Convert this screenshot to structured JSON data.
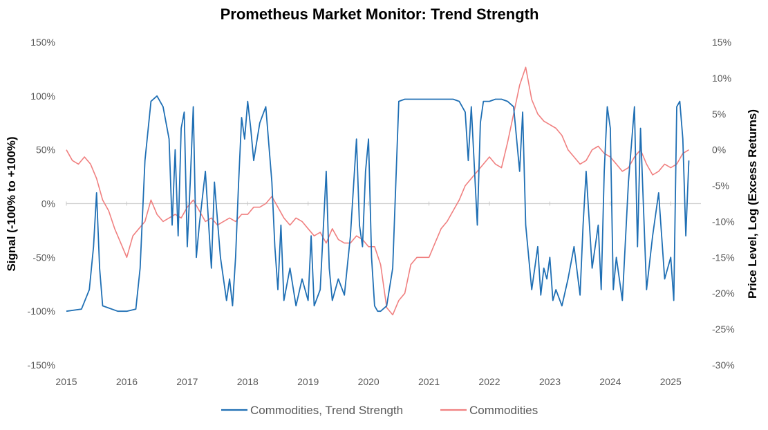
{
  "chart_data": {
    "type": "line",
    "title": "Prometheus Market Monitor: Trend Strength",
    "ylabel_left": "Signal (-100% to +100%)",
    "ylabel_right": "Price Level, Log (Excess Returns)",
    "xlabel": "",
    "x_ticks": [
      "2015",
      "2016",
      "2017",
      "2018",
      "2019",
      "2020",
      "2021",
      "2022",
      "2023",
      "2024",
      "2025"
    ],
    "x_range": [
      2015.0,
      2025.5
    ],
    "y_left": {
      "ticks": [
        "150%",
        "100%",
        "50%",
        "0%",
        "-50%",
        "-100%",
        "-150%"
      ],
      "range": [
        -150,
        150
      ]
    },
    "y_right": {
      "ticks": [
        "15%",
        "10%",
        "5%",
        "0%",
        "-5%",
        "-10%",
        "-15%",
        "-20%",
        "-25%",
        "-30%"
      ],
      "range": [
        -30,
        15
      ]
    },
    "grid": "zero line only",
    "legend_position": "bottom",
    "series": [
      {
        "name": "Commodities, Trend Strength",
        "axis": "left",
        "color": "#1f6fb4",
        "x": [
          2015.0,
          2015.25,
          2015.38,
          2015.45,
          2015.5,
          2015.55,
          2015.6,
          2015.7,
          2015.85,
          2016.0,
          2016.15,
          2016.22,
          2016.3,
          2016.4,
          2016.5,
          2016.6,
          2016.7,
          2016.75,
          2016.8,
          2016.85,
          2016.9,
          2016.95,
          2017.0,
          2017.05,
          2017.1,
          2017.15,
          2017.2,
          2017.3,
          2017.4,
          2017.45,
          2017.55,
          2017.65,
          2017.7,
          2017.75,
          2017.8,
          2017.85,
          2017.9,
          2017.95,
          2018.0,
          2018.05,
          2018.1,
          2018.2,
          2018.3,
          2018.4,
          2018.45,
          2018.5,
          2018.55,
          2018.6,
          2018.7,
          2018.8,
          2018.9,
          2019.0,
          2019.05,
          2019.1,
          2019.2,
          2019.3,
          2019.35,
          2019.4,
          2019.5,
          2019.6,
          2019.7,
          2019.8,
          2019.85,
          2019.9,
          2019.95,
          2020.0,
          2020.05,
          2020.1,
          2020.15,
          2020.2,
          2020.3,
          2020.4,
          2020.5,
          2020.6,
          2020.7,
          2020.8,
          2021.0,
          2021.2,
          2021.4,
          2021.5,
          2021.6,
          2021.65,
          2021.7,
          2021.8,
          2021.85,
          2021.9,
          2022.0,
          2022.1,
          2022.2,
          2022.3,
          2022.4,
          2022.5,
          2022.55,
          2022.6,
          2022.7,
          2022.75,
          2022.8,
          2022.85,
          2022.9,
          2022.95,
          2023.0,
          2023.05,
          2023.1,
          2023.2,
          2023.3,
          2023.4,
          2023.5,
          2023.55,
          2023.6,
          2023.7,
          2023.75,
          2023.8,
          2023.85,
          2023.9,
          2023.95,
          2024.0,
          2024.05,
          2024.1,
          2024.2,
          2024.3,
          2024.4,
          2024.45,
          2024.5,
          2024.6,
          2024.7,
          2024.8,
          2024.9,
          2025.0,
          2025.05,
          2025.1,
          2025.15,
          2025.2,
          2025.25,
          2025.3
        ],
        "y": [
          -100,
          -98,
          -80,
          -40,
          10,
          -60,
          -95,
          -97,
          -100,
          -100,
          -98,
          -60,
          40,
          95,
          100,
          90,
          60,
          -20,
          50,
          -30,
          70,
          85,
          -40,
          20,
          90,
          -50,
          -20,
          30,
          -60,
          20,
          -50,
          -90,
          -70,
          -95,
          -50,
          20,
          80,
          60,
          95,
          70,
          40,
          75,
          90,
          20,
          -40,
          -80,
          -20,
          -90,
          -60,
          -95,
          -70,
          -90,
          -30,
          -95,
          -80,
          30,
          -60,
          -90,
          -70,
          -85,
          -30,
          60,
          -20,
          -40,
          30,
          60,
          -50,
          -95,
          -100,
          -100,
          -95,
          -60,
          95,
          97,
          97,
          97,
          97,
          97,
          97,
          95,
          85,
          40,
          90,
          -20,
          75,
          95,
          95,
          97,
          97,
          95,
          90,
          30,
          85,
          -20,
          -80,
          -60,
          -40,
          -85,
          -60,
          -70,
          -50,
          -90,
          -80,
          -95,
          -70,
          -40,
          -85,
          -20,
          30,
          -60,
          -40,
          -20,
          -80,
          30,
          90,
          70,
          -80,
          -50,
          -90,
          20,
          90,
          -40,
          70,
          -80,
          -30,
          10,
          -70,
          -50,
          -90,
          90,
          95,
          60,
          -30,
          40
        ]
      },
      {
        "name": "Commodities",
        "axis": "right",
        "color": "#f08080",
        "x": [
          2015.0,
          2015.1,
          2015.2,
          2015.3,
          2015.4,
          2015.5,
          2015.6,
          2015.7,
          2015.8,
          2015.9,
          2016.0,
          2016.1,
          2016.2,
          2016.3,
          2016.4,
          2016.5,
          2016.6,
          2016.7,
          2016.8,
          2016.9,
          2017.0,
          2017.1,
          2017.2,
          2017.3,
          2017.4,
          2017.5,
          2017.6,
          2017.7,
          2017.8,
          2017.9,
          2018.0,
          2018.1,
          2018.2,
          2018.3,
          2018.4,
          2018.5,
          2018.6,
          2018.7,
          2018.8,
          2018.9,
          2019.0,
          2019.1,
          2019.2,
          2019.3,
          2019.4,
          2019.5,
          2019.6,
          2019.7,
          2019.8,
          2019.9,
          2020.0,
          2020.1,
          2020.2,
          2020.3,
          2020.4,
          2020.5,
          2020.6,
          2020.7,
          2020.8,
          2020.9,
          2021.0,
          2021.1,
          2021.2,
          2021.3,
          2021.4,
          2021.5,
          2021.6,
          2021.7,
          2021.8,
          2021.9,
          2022.0,
          2022.1,
          2022.2,
          2022.3,
          2022.4,
          2022.5,
          2022.6,
          2022.7,
          2022.8,
          2022.9,
          2023.0,
          2023.1,
          2023.2,
          2023.3,
          2023.4,
          2023.5,
          2023.6,
          2023.7,
          2023.8,
          2023.9,
          2024.0,
          2024.1,
          2024.2,
          2024.3,
          2024.4,
          2024.5,
          2024.6,
          2024.7,
          2024.8,
          2024.9,
          2025.0,
          2025.1,
          2025.2,
          2025.3
        ],
        "y": [
          0,
          -1.5,
          -2,
          -1,
          -2,
          -4,
          -7,
          -8.5,
          -11,
          -13,
          -15,
          -12,
          -11,
          -10,
          -7,
          -9,
          -10,
          -9.5,
          -9,
          -9.5,
          -8,
          -7,
          -8.5,
          -10,
          -9.5,
          -10.5,
          -10,
          -9.5,
          -10,
          -9,
          -9,
          -8,
          -8,
          -7.5,
          -6.5,
          -8,
          -9.5,
          -10.5,
          -9.5,
          -10,
          -11,
          -12,
          -11.5,
          -13,
          -11,
          -12.5,
          -13,
          -13,
          -12,
          -12.5,
          -13.5,
          -13.5,
          -16,
          -22,
          -23,
          -21,
          -20,
          -16,
          -15,
          -15,
          -15,
          -13,
          -11,
          -10,
          -8.5,
          -7,
          -5,
          -4,
          -3,
          -2,
          -1,
          -2,
          -2.5,
          1,
          5,
          9,
          11.5,
          7,
          5,
          4,
          3.5,
          3,
          2,
          0,
          -1,
          -2,
          -1.5,
          0,
          0.5,
          -0.5,
          -1,
          -2,
          -3,
          -2.5,
          -1,
          0,
          -2,
          -3.5,
          -3,
          -2,
          -2.5,
          -2,
          -0.5,
          0
        ]
      }
    ]
  }
}
